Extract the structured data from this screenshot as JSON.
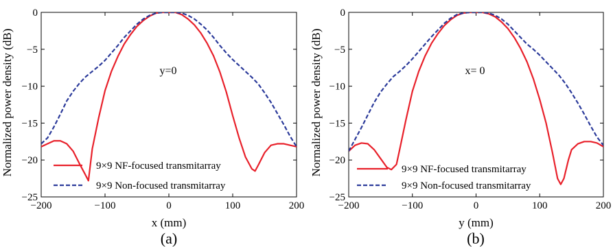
{
  "chart_data": [
    {
      "type": "line",
      "caption": "(a)",
      "xlabel": "x (mm)",
      "ylabel": "Normalized power density (dB)",
      "annotation": "y=0",
      "xlim": [
        -200,
        200
      ],
      "ylim": [
        -25,
        0
      ],
      "xticks": [
        -200,
        -100,
        0,
        100,
        200
      ],
      "yticks": [
        0,
        -5,
        -10,
        -15,
        -20,
        -25
      ],
      "grid": false,
      "legend_position": "bottom-center",
      "series": [
        {
          "name": "9×9 NF-focused transmitarray",
          "color": "#e8202a",
          "dash": "solid",
          "x": [
            -200,
            -190,
            -180,
            -170,
            -160,
            -150,
            -140,
            -132,
            -126,
            -120,
            -110,
            -100,
            -90,
            -80,
            -70,
            -60,
            -50,
            -40,
            -30,
            -20,
            -10,
            0,
            10,
            20,
            30,
            40,
            50,
            60,
            70,
            80,
            90,
            100,
            110,
            120,
            130,
            135,
            140,
            150,
            160,
            170,
            180,
            190,
            200
          ],
          "y": [
            -18.2,
            -17.8,
            -17.4,
            -17.4,
            -17.8,
            -18.8,
            -20.5,
            -21.8,
            -22.8,
            -18.5,
            -14.3,
            -10.6,
            -8.0,
            -6.0,
            -4.3,
            -3.0,
            -1.9,
            -1.1,
            -0.5,
            -0.1,
            0.0,
            0.0,
            0.0,
            -0.3,
            -0.9,
            -1.7,
            -2.8,
            -4.2,
            -5.9,
            -8.1,
            -10.8,
            -14.0,
            -17.0,
            -19.6,
            -21.2,
            -21.5,
            -20.7,
            -19.0,
            -18.0,
            -17.8,
            -17.8,
            -18.0,
            -18.2
          ]
        },
        {
          "name": "9×9 Non-focused transmitarray",
          "color": "#2b3a9a",
          "dash": "dashed",
          "x": [
            -200,
            -190,
            -180,
            -170,
            -160,
            -150,
            -140,
            -130,
            -120,
            -110,
            -100,
            -90,
            -80,
            -70,
            -60,
            -50,
            -40,
            -30,
            -20,
            -10,
            0,
            10,
            20,
            30,
            40,
            50,
            60,
            70,
            80,
            90,
            100,
            110,
            120,
            130,
            140,
            150,
            160,
            170,
            180,
            190,
            200
          ],
          "y": [
            -17.8,
            -17.0,
            -15.5,
            -13.8,
            -12.0,
            -10.7,
            -9.6,
            -8.7,
            -8.0,
            -7.3,
            -6.5,
            -5.5,
            -4.5,
            -3.4,
            -2.5,
            -1.6,
            -0.9,
            -0.4,
            -0.1,
            0.0,
            0.0,
            0.0,
            -0.1,
            -0.4,
            -0.9,
            -1.6,
            -2.4,
            -3.4,
            -4.5,
            -5.5,
            -6.4,
            -7.2,
            -8.0,
            -8.8,
            -9.7,
            -10.9,
            -12.2,
            -13.7,
            -15.2,
            -16.8,
            -18.2
          ]
        }
      ]
    },
    {
      "type": "line",
      "caption": "(b)",
      "xlabel": "y (mm)",
      "ylabel": "Normalized power density (dB)",
      "annotation": "x= 0",
      "xlim": [
        -200,
        200
      ],
      "ylim": [
        -25,
        0
      ],
      "xticks": [
        -200,
        -100,
        0,
        100,
        200
      ],
      "yticks": [
        0,
        -5,
        -10,
        -15,
        -20,
        -25
      ],
      "grid": false,
      "legend_position": "bottom-center",
      "series": [
        {
          "name": "9×9 NF-focused transmitarray",
          "color": "#e8202a",
          "dash": "solid",
          "x": [
            -200,
            -190,
            -180,
            -170,
            -160,
            -150,
            -140,
            -133,
            -125,
            -120,
            -110,
            -100,
            -90,
            -80,
            -70,
            -60,
            -50,
            -40,
            -30,
            -20,
            -10,
            0,
            10,
            20,
            30,
            40,
            50,
            60,
            70,
            80,
            90,
            100,
            110,
            120,
            128,
            133,
            138,
            145,
            150,
            160,
            170,
            180,
            190,
            200
          ],
          "y": [
            -18.8,
            -18.0,
            -17.7,
            -17.8,
            -18.6,
            -19.8,
            -21.0,
            -21.3,
            -20.6,
            -18.6,
            -14.5,
            -10.7,
            -8.0,
            -5.9,
            -4.2,
            -2.9,
            -1.8,
            -1.0,
            -0.4,
            -0.1,
            0.0,
            0.0,
            0.0,
            -0.2,
            -0.6,
            -1.3,
            -2.2,
            -3.4,
            -4.9,
            -6.7,
            -9.0,
            -11.8,
            -15.0,
            -19.0,
            -22.5,
            -23.3,
            -22.5,
            -20.0,
            -18.6,
            -17.8,
            -17.5,
            -17.5,
            -17.7,
            -18.2
          ]
        },
        {
          "name": "9×9 Non-focused transmitarray",
          "color": "#2b3a9a",
          "dash": "dashed",
          "x": [
            -200,
            -190,
            -180,
            -170,
            -160,
            -150,
            -140,
            -130,
            -120,
            -110,
            -100,
            -90,
            -80,
            -70,
            -60,
            -50,
            -40,
            -30,
            -20,
            -10,
            0,
            10,
            20,
            30,
            40,
            50,
            60,
            70,
            80,
            90,
            100,
            110,
            120,
            130,
            140,
            150,
            160,
            170,
            180,
            190,
            200
          ],
          "y": [
            -18.8,
            -17.2,
            -15.6,
            -13.9,
            -12.2,
            -10.8,
            -9.7,
            -8.7,
            -8.0,
            -7.2,
            -6.3,
            -5.3,
            -4.3,
            -3.3,
            -2.4,
            -1.5,
            -0.8,
            -0.3,
            -0.1,
            0.0,
            0.0,
            0.0,
            -0.1,
            -0.4,
            -0.9,
            -1.6,
            -2.5,
            -3.4,
            -4.3,
            -5.0,
            -5.8,
            -6.7,
            -7.6,
            -8.5,
            -9.6,
            -10.9,
            -12.3,
            -13.8,
            -15.4,
            -16.9,
            -18.0
          ]
        }
      ]
    }
  ]
}
